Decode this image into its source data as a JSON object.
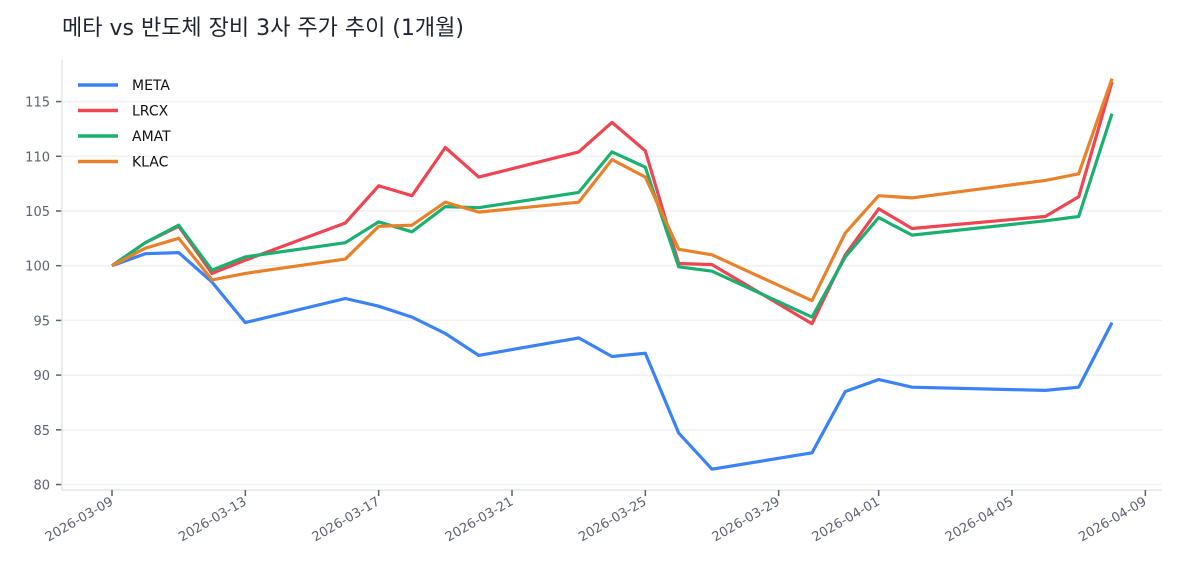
{
  "chart_data": {
    "type": "line",
    "title": "메타 vs 반도체 장비 3사 주가 추이 (1개월)",
    "xlabel": "",
    "ylabel": "",
    "x": [
      "2026-03-09",
      "2026-03-10",
      "2026-03-11",
      "2026-03-12",
      "2026-03-13",
      "2026-03-16",
      "2026-03-17",
      "2026-03-18",
      "2026-03-19",
      "2026-03-20",
      "2026-03-23",
      "2026-03-24",
      "2026-03-25",
      "2026-03-26",
      "2026-03-27",
      "2026-03-30",
      "2026-03-31",
      "2026-04-01",
      "2026-04-02",
      "2026-04-06",
      "2026-04-07",
      "2026-04-08"
    ],
    "series": [
      {
        "name": "META",
        "color": "#3b82f6",
        "values": [
          100,
          101.1,
          101.2,
          98.5,
          94.8,
          97.0,
          96.3,
          95.3,
          93.8,
          91.8,
          93.4,
          91.7,
          92.0,
          84.7,
          81.4,
          82.9,
          88.5,
          89.6,
          88.9,
          88.6,
          88.9,
          94.8
        ]
      },
      {
        "name": "LRCX",
        "color": "#ef4452",
        "values": [
          100,
          102.1,
          103.6,
          99.3,
          100.5,
          103.9,
          107.3,
          106.4,
          110.8,
          108.1,
          110.4,
          113.1,
          110.5,
          100.2,
          100.1,
          94.7,
          101.0,
          105.2,
          103.4,
          104.5,
          106.3,
          116.8
        ]
      },
      {
        "name": "AMAT",
        "color": "#1bb070",
        "values": [
          100,
          102.1,
          103.7,
          99.6,
          100.8,
          102.1,
          104.0,
          103.1,
          105.4,
          105.3,
          106.7,
          110.4,
          109.0,
          99.9,
          99.5,
          95.3,
          100.8,
          104.4,
          102.8,
          104.1,
          104.5,
          113.9
        ]
      },
      {
        "name": "KLAC",
        "color": "#e8822a",
        "values": [
          100,
          101.6,
          102.5,
          98.7,
          99.3,
          100.6,
          103.6,
          103.7,
          105.8,
          104.9,
          105.8,
          109.7,
          108.1,
          101.5,
          101.0,
          96.8,
          103.0,
          106.4,
          106.2,
          107.8,
          108.4,
          117.1
        ]
      }
    ],
    "yticks": [
      80,
      85,
      90,
      95,
      100,
      105,
      110,
      115
    ],
    "xticks": [
      "2026-03-09",
      "2026-03-13",
      "2026-03-17",
      "2026-03-21",
      "2026-03-25",
      "2026-03-29",
      "2026-04-01",
      "2026-04-05",
      "2026-04-09"
    ],
    "ylim": [
      79.5,
      118.8
    ],
    "xlim": [
      "2026-03-07T12:00",
      "2026-04-09T12:00"
    ],
    "grid": "horizontal",
    "legend": "top-left"
  }
}
